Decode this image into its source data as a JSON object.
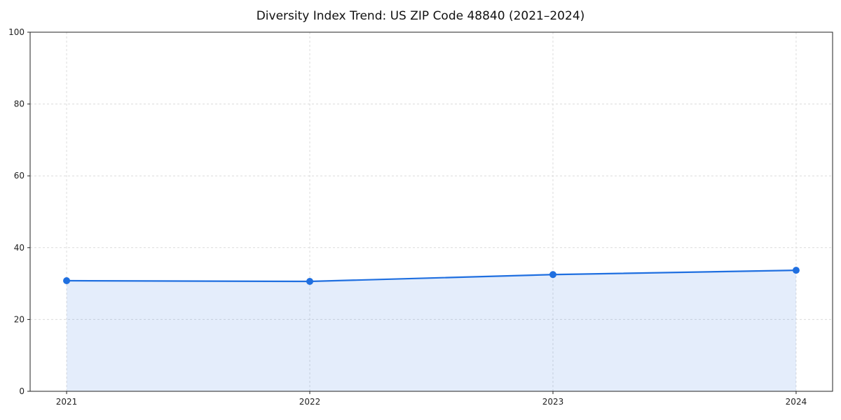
{
  "page": {
    "background": "#ffffff"
  },
  "chart_data": {
    "type": "area",
    "title": "Diversity Index Trend: US ZIP Code 48840 (2021–2024)",
    "x": [
      2021,
      2022,
      2023,
      2024
    ],
    "series": [
      {
        "name": "Diversity Index",
        "values": [
          30.8,
          30.6,
          32.5,
          33.7
        ]
      }
    ],
    "xlabel": "",
    "ylabel": "",
    "xticks": [
      2021,
      2022,
      2023,
      2024
    ],
    "yticks": [
      0,
      20,
      40,
      60,
      80,
      100
    ],
    "xlim": [
      2020.85,
      2024.15
    ],
    "ylim": [
      0,
      100
    ],
    "grid": true,
    "legend": "none",
    "line_color": "#1f6fe0",
    "fill_color": "#1f6fe0",
    "fill_opacity": 0.12,
    "marker": "circle",
    "marker_radius": 5
  }
}
